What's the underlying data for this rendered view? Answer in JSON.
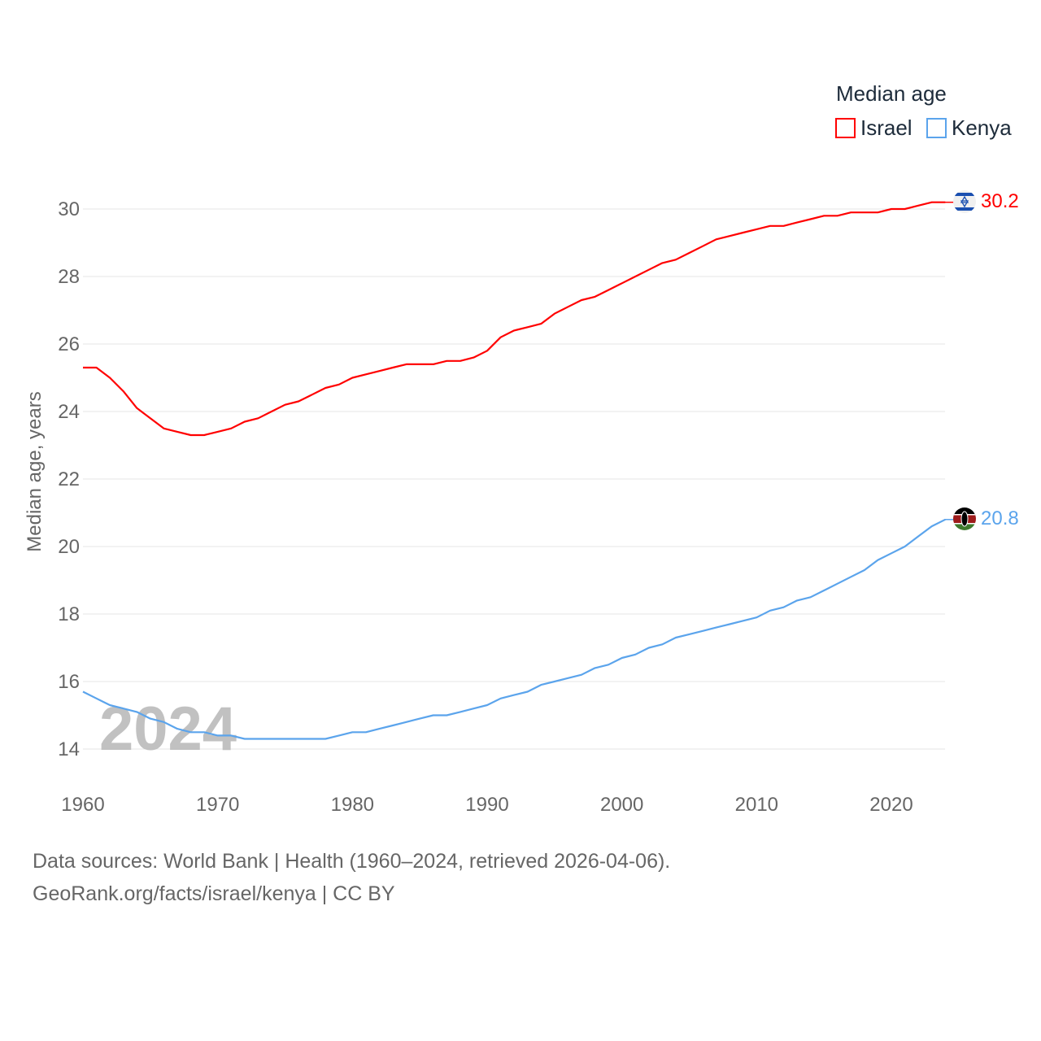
{
  "chart_data": {
    "type": "line",
    "legend_title": "Median age",
    "ylabel": "Median age, years",
    "xlabel": "",
    "xlim": [
      1960,
      2024
    ],
    "ylim": [
      13,
      31
    ],
    "x_ticks": [
      1960,
      1970,
      1980,
      1990,
      2000,
      2010,
      2020
    ],
    "y_ticks": [
      14,
      16,
      18,
      20,
      22,
      24,
      26,
      28,
      30
    ],
    "legend_placement": "top-right",
    "watermark_year": "2024",
    "grid": true,
    "x": [
      1960,
      1961,
      1962,
      1963,
      1964,
      1965,
      1966,
      1967,
      1968,
      1969,
      1970,
      1971,
      1972,
      1973,
      1974,
      1975,
      1976,
      1977,
      1978,
      1979,
      1980,
      1981,
      1982,
      1983,
      1984,
      1985,
      1986,
      1987,
      1988,
      1989,
      1990,
      1991,
      1992,
      1993,
      1994,
      1995,
      1996,
      1997,
      1998,
      1999,
      2000,
      2001,
      2002,
      2003,
      2004,
      2005,
      2006,
      2007,
      2008,
      2009,
      2010,
      2011,
      2012,
      2013,
      2014,
      2015,
      2016,
      2017,
      2018,
      2019,
      2020,
      2021,
      2022,
      2023,
      2024
    ],
    "series": [
      {
        "name": "Israel",
        "color": "#ff0000",
        "end_label": "30.2",
        "values": [
          25.3,
          25.3,
          25.0,
          24.6,
          24.1,
          23.8,
          23.5,
          23.4,
          23.3,
          23.3,
          23.4,
          23.5,
          23.7,
          23.8,
          24.0,
          24.2,
          24.3,
          24.5,
          24.7,
          24.8,
          25.0,
          25.1,
          25.2,
          25.3,
          25.4,
          25.4,
          25.4,
          25.5,
          25.5,
          25.6,
          25.8,
          26.2,
          26.4,
          26.5,
          26.6,
          26.9,
          27.1,
          27.3,
          27.4,
          27.6,
          27.8,
          28.0,
          28.2,
          28.4,
          28.5,
          28.7,
          28.9,
          29.1,
          29.2,
          29.3,
          29.4,
          29.5,
          29.5,
          29.6,
          29.7,
          29.8,
          29.8,
          29.9,
          29.9,
          29.9,
          30.0,
          30.0,
          30.1,
          30.2,
          30.2
        ]
      },
      {
        "name": "Kenya",
        "color": "#5ba4ec",
        "end_label": "20.8",
        "values": [
          15.7,
          15.5,
          15.3,
          15.2,
          15.1,
          14.9,
          14.8,
          14.6,
          14.5,
          14.5,
          14.4,
          14.4,
          14.3,
          14.3,
          14.3,
          14.3,
          14.3,
          14.3,
          14.3,
          14.4,
          14.5,
          14.5,
          14.6,
          14.7,
          14.8,
          14.9,
          15.0,
          15.0,
          15.1,
          15.2,
          15.3,
          15.5,
          15.6,
          15.7,
          15.9,
          16.0,
          16.1,
          16.2,
          16.4,
          16.5,
          16.7,
          16.8,
          17.0,
          17.1,
          17.3,
          17.4,
          17.5,
          17.6,
          17.7,
          17.8,
          17.9,
          18.1,
          18.2,
          18.4,
          18.5,
          18.7,
          18.9,
          19.1,
          19.3,
          19.6,
          19.8,
          20.0,
          20.3,
          20.6,
          20.8
        ]
      }
    ]
  },
  "footer": {
    "line1": "Data sources: World Bank | Health (1960–2024, retrieved 2026-04-06).",
    "line2": "GeoRank.org/facts/israel/kenya | CC BY"
  }
}
